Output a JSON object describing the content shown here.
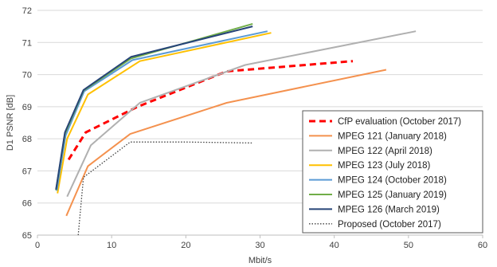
{
  "chart_data": {
    "type": "line",
    "title": "",
    "xlabel": "Mbit/s",
    "ylabel": "D1 PSNR [dB]",
    "xlim": [
      0,
      60
    ],
    "ylim": [
      65,
      72
    ],
    "xticks": [
      "0",
      "10",
      "20",
      "30",
      "40",
      "50",
      "60"
    ],
    "yticks": [
      "65",
      "66",
      "67",
      "68",
      "69",
      "70",
      "71",
      "72"
    ],
    "grid": "horizontal",
    "legend_position": "bottom-right",
    "series": [
      {
        "name": "CfP evaluation (October 2017)",
        "color": "#ff0000",
        "style": "dashed",
        "points": [
          [
            4.2,
            67.35
          ],
          [
            6.5,
            68.2
          ],
          [
            13.5,
            69.0
          ],
          [
            25.5,
            70.1
          ],
          [
            42.5,
            70.42
          ]
        ]
      },
      {
        "name": "MPEG 121 (January 2018)",
        "color": "#f4914e",
        "style": "solid",
        "points": [
          [
            3.9,
            65.6
          ],
          [
            6.8,
            67.15
          ],
          [
            12.5,
            68.15
          ],
          [
            25.5,
            69.12
          ],
          [
            47.0,
            70.15
          ]
        ]
      },
      {
        "name": "MPEG 122 (April 2018)",
        "color": "#b0b0b0",
        "style": "solid",
        "points": [
          [
            4.0,
            66.2
          ],
          [
            7.2,
            67.8
          ],
          [
            13.8,
            69.12
          ],
          [
            28.0,
            70.3
          ],
          [
            51.0,
            71.35
          ]
        ]
      },
      {
        "name": "MPEG 123 (July 2018)",
        "color": "#ffc000",
        "style": "solid",
        "points": [
          [
            2.7,
            66.3
          ],
          [
            4.0,
            68.0
          ],
          [
            6.8,
            69.38
          ],
          [
            13.8,
            70.42
          ],
          [
            31.5,
            71.3
          ]
        ]
      },
      {
        "name": "MPEG 124 (October 2018)",
        "color": "#5b9bd5",
        "style": "solid",
        "points": [
          [
            2.6,
            66.38
          ],
          [
            3.8,
            68.1
          ],
          [
            6.3,
            69.48
          ],
          [
            12.8,
            70.45
          ],
          [
            31.0,
            71.35
          ]
        ]
      },
      {
        "name": "MPEG 125 (January 2019)",
        "color": "#70ad47",
        "style": "solid",
        "points": [
          [
            2.5,
            66.4
          ],
          [
            3.7,
            68.15
          ],
          [
            6.2,
            69.5
          ],
          [
            12.6,
            70.5
          ],
          [
            29.0,
            71.58
          ]
        ]
      },
      {
        "name": "MPEG 126 (March 2019)",
        "color": "#264478",
        "style": "solid",
        "points": [
          [
            2.5,
            66.42
          ],
          [
            3.7,
            68.2
          ],
          [
            6.2,
            69.52
          ],
          [
            12.6,
            70.55
          ],
          [
            29.0,
            71.5
          ]
        ]
      },
      {
        "name": "Proposed (October 2017)",
        "color": "#404040",
        "style": "dotted",
        "points": [
          [
            5.5,
            65.0
          ],
          [
            6.2,
            66.8
          ],
          [
            12.5,
            67.9
          ],
          [
            20.0,
            67.9
          ],
          [
            29.0,
            67.87
          ]
        ]
      }
    ]
  }
}
